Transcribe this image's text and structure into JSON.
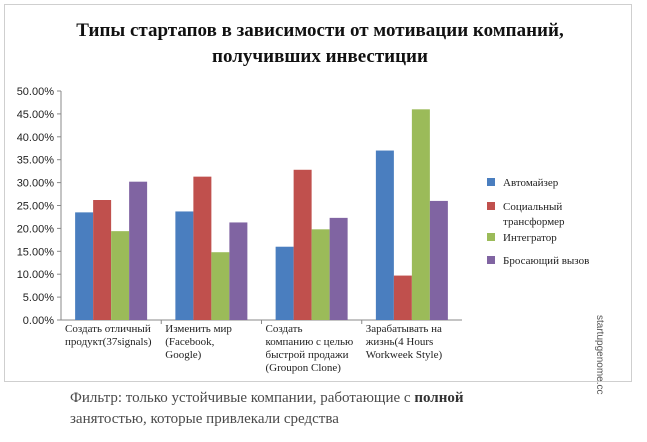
{
  "chart_data": {
    "type": "bar",
    "title": "Типы стартапов в зависимости от мотивации компаний, получивших инвестиции",
    "categories": [
      [
        "Создать отличный",
        "продукт(37signals)"
      ],
      [
        "Изменить мир",
        "(Facebook,",
        "Google)"
      ],
      [
        "Создать",
        "компанию с целью",
        "быстрой продажи",
        "(Groupon Clone)"
      ],
      [
        "Зарабатывать на",
        "жизнь(4 Hours",
        "Workweek Style)"
      ]
    ],
    "series": [
      {
        "name": "Автомайзер",
        "color": "#4a7ebf",
        "values": [
          23.5,
          23.7,
          16.0,
          37.0
        ]
      },
      {
        "name": "Социальный трансформер",
        "color": "#c0504d",
        "values": [
          26.2,
          31.3,
          32.8,
          9.7
        ]
      },
      {
        "name": "Интегратор",
        "color": "#9bbb59",
        "values": [
          19.4,
          14.8,
          19.8,
          46.0
        ]
      },
      {
        "name": "Бросающий вызов",
        "color": "#8064a2",
        "values": [
          30.2,
          21.3,
          22.3,
          26.0
        ]
      }
    ],
    "legend_labels": [
      [
        "Автомайзер"
      ],
      [
        "Социальный",
        "трансформер"
      ],
      [
        "Интегратор"
      ],
      [
        "Бросающий вызов"
      ]
    ],
    "ylim": [
      0,
      50
    ],
    "yticks": [
      "0.00%",
      "5.00%",
      "10.00%",
      "15.00%",
      "20.00%",
      "25.00%",
      "30.00%",
      "35.00%",
      "40.00%",
      "45.00%",
      "50.00%"
    ],
    "legend_position": "right"
  },
  "watermark": "startupgenome.cc",
  "caption": {
    "part1": "Фильтр: только устойчивые компании, работающие с ",
    "bold": "полной",
    "part2": "занятостью,  которые привлекали средства"
  }
}
